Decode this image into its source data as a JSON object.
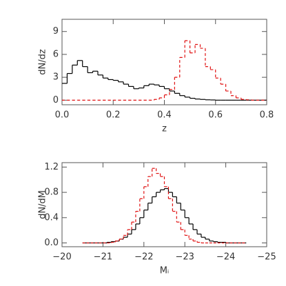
{
  "chart_data": [
    {
      "type": "histogram",
      "x_label": "z",
      "y_label": "dN/dz",
      "xlim": [
        0,
        0.8
      ],
      "ylim": [
        -0.6,
        10.6
      ],
      "xticks": [
        {
          "value": 0,
          "label": "0.0"
        },
        {
          "value": 0.2,
          "label": "0.2"
        },
        {
          "value": 0.4,
          "label": "0.4"
        },
        {
          "value": 0.6,
          "label": "0.6"
        },
        {
          "value": 0.8,
          "label": "0.8"
        }
      ],
      "yticks": [
        0,
        3,
        6,
        9
      ],
      "bins": [
        0,
        0.02,
        0.04,
        0.06,
        0.08,
        0.1,
        0.12,
        0.14,
        0.16,
        0.18,
        0.2,
        0.22,
        0.24,
        0.26,
        0.28,
        0.3,
        0.32,
        0.34,
        0.36,
        0.38,
        0.4,
        0.42,
        0.44,
        0.46,
        0.48,
        0.5,
        0.52,
        0.54,
        0.56,
        0.58,
        0.6,
        0.62,
        0.64,
        0.66,
        0.68,
        0.7,
        0.72,
        0.74,
        0.76,
        0.78,
        0.8
      ],
      "series": [
        {
          "color": "#000000",
          "dashed": false,
          "values": [
            2.2,
            3.5,
            4.6,
            5.2,
            4.4,
            3.6,
            3.8,
            3.3,
            2.9,
            2.7,
            2.6,
            2.4,
            2.1,
            1.8,
            1.5,
            1.6,
            1.9,
            2.1,
            2.0,
            1.8,
            1.5,
            1.2,
            0.9,
            0.6,
            0.4,
            0.25,
            0.15,
            0.1,
            0.05,
            0.03,
            0,
            0,
            0,
            0,
            0,
            0,
            0,
            0,
            0,
            0
          ]
        },
        {
          "color": "#e01010",
          "dashed": true,
          "values": [
            0,
            0,
            0,
            0,
            0,
            0,
            0,
            0,
            0,
            0,
            0,
            0,
            0,
            0,
            0,
            0,
            0,
            0,
            0.1,
            0.3,
            0.7,
            1.4,
            3.0,
            5.6,
            7.8,
            6.2,
            7.3,
            6.8,
            4.4,
            4.0,
            2.9,
            2.1,
            1.2,
            0.6,
            0.3,
            0.1,
            0.05,
            0,
            0,
            0
          ]
        }
      ]
    },
    {
      "type": "histogram",
      "x_label": "Mᵢ",
      "y_label": "dN/dM",
      "xlim": [
        -20,
        -25
      ],
      "ylim": [
        -0.06,
        1.27
      ],
      "xticks": [
        {
          "value": -20,
          "label": "−20"
        },
        {
          "value": -21,
          "label": "−21"
        },
        {
          "value": -22,
          "label": "−22"
        },
        {
          "value": -23,
          "label": "−23"
        },
        {
          "value": -24,
          "label": "−24"
        },
        {
          "value": -25,
          "label": "−25"
        }
      ],
      "yticks": [
        {
          "value": 0,
          "label": "0.0"
        },
        {
          "value": 0.4,
          "label": "0.4"
        },
        {
          "value": 0.8,
          "label": "0.8"
        },
        {
          "value": 1.2,
          "label": "1.2"
        }
      ],
      "bins": [
        -20.5,
        -20.6,
        -20.7,
        -20.8,
        -20.9,
        -21.0,
        -21.1,
        -21.2,
        -21.3,
        -21.4,
        -21.5,
        -21.6,
        -21.7,
        -21.8,
        -21.9,
        -22.0,
        -22.1,
        -22.2,
        -22.3,
        -22.4,
        -22.5,
        -22.6,
        -22.7,
        -22.8,
        -22.9,
        -23.0,
        -23.1,
        -23.2,
        -23.3,
        -23.4,
        -23.5,
        -23.6,
        -23.7,
        -23.8,
        -23.9,
        -24.0,
        -24.1,
        -24.2,
        -24.3,
        -24.4,
        -24.5
      ],
      "series": [
        {
          "color": "#000000",
          "dashed": false,
          "values": [
            0,
            0,
            0,
            0,
            0,
            0,
            0.01,
            0.02,
            0.03,
            0.06,
            0.09,
            0.14,
            0.21,
            0.3,
            0.4,
            0.52,
            0.63,
            0.73,
            0.8,
            0.84,
            0.86,
            0.8,
            0.73,
            0.63,
            0.52,
            0.4,
            0.3,
            0.21,
            0.14,
            0.09,
            0.06,
            0.03,
            0.02,
            0.01,
            0.01,
            0,
            0,
            0,
            0,
            0
          ]
        },
        {
          "color": "#e01010",
          "dashed": true,
          "values": [
            0,
            0,
            0,
            0,
            0,
            0,
            0,
            0.01,
            0.03,
            0.06,
            0.12,
            0.21,
            0.33,
            0.5,
            0.7,
            0.89,
            1.05,
            1.18,
            1.1,
            1.05,
            0.89,
            0.7,
            0.5,
            0.33,
            0.21,
            0.12,
            0.06,
            0.03,
            0.01,
            0,
            0,
            0,
            0,
            0,
            0,
            0,
            0,
            0,
            0,
            0
          ]
        }
      ]
    }
  ]
}
